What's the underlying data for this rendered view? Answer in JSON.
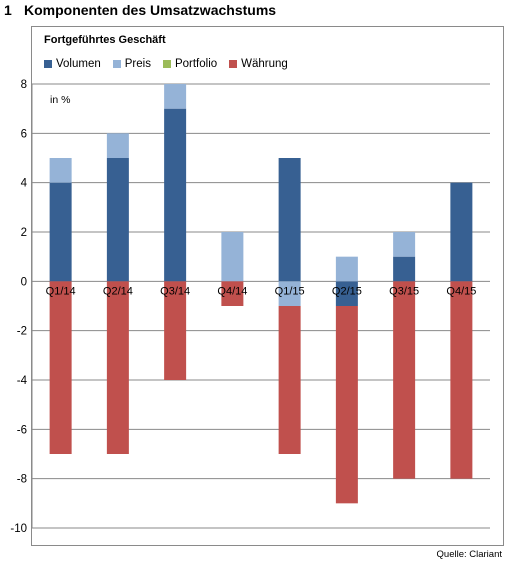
{
  "page": {
    "title_number": "1",
    "title": "Komponenten des Umsatzwachstums",
    "source": "Quelle: Clariant"
  },
  "chart_data": {
    "type": "bar",
    "stacked": true,
    "subtitle": "Fortgeführtes Geschäft",
    "unit_label": "in %",
    "categories": [
      "Q1/14",
      "Q2/14",
      "Q3/14",
      "Q4/14",
      "Q1/15",
      "Q2/15",
      "Q3/15",
      "Q4/15"
    ],
    "series": [
      {
        "name": "Volumen",
        "color": "#376092",
        "values": [
          4,
          5,
          7,
          0,
          5,
          -1,
          1,
          4
        ]
      },
      {
        "name": "Preis",
        "color": "#95b3d7",
        "values": [
          1,
          1,
          1,
          2,
          -1,
          1,
          1,
          0
        ]
      },
      {
        "name": "Portfolio",
        "color": "#9bbb59",
        "values": [
          0,
          0,
          0,
          0,
          0,
          0,
          0,
          0
        ]
      },
      {
        "name": "Währung",
        "color": "#c0504d",
        "values": [
          -7,
          -7,
          -4,
          -1,
          -6,
          -8,
          -8,
          -8
        ]
      }
    ],
    "ylim": [
      -10,
      8
    ],
    "yticks": [
      8,
      6,
      4,
      2,
      0,
      -2,
      -4,
      -6,
      -8,
      -10
    ],
    "grid": true,
    "legend_position": "top-left"
  }
}
